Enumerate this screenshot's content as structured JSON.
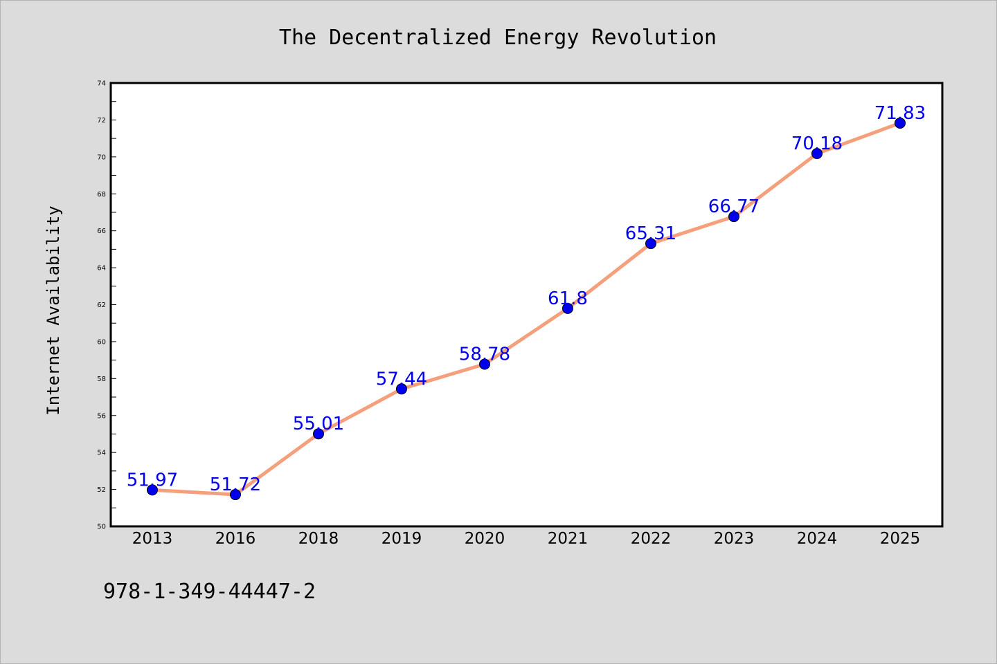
{
  "chart_data": {
    "type": "line",
    "title": "The Decentralized Energy Revolution",
    "xlabel": "",
    "ylabel": "Internet Availability",
    "categories": [
      "2013",
      "2016",
      "2018",
      "2019",
      "2020",
      "2021",
      "2022",
      "2023",
      "2024",
      "2025"
    ],
    "series": [
      {
        "values": [
          51.97,
          51.72,
          55.01,
          57.44,
          58.78,
          61.8,
          65.31,
          66.77,
          70.18,
          71.83
        ]
      }
    ],
    "data_labels": [
      "51.97",
      "51.72",
      "55.01",
      "57.44",
      "58.78",
      "61.8",
      "65.31",
      "66.77",
      "70.18",
      "71.83"
    ],
    "ylim": [
      50,
      74
    ],
    "yticks": [
      50,
      52,
      54,
      56,
      58,
      60,
      62,
      64,
      66,
      68,
      70,
      72,
      74
    ],
    "grid": false,
    "legend": "none",
    "colors": {
      "line": "#f4a07c",
      "marker": "#0000ee",
      "label": "#0000ee",
      "background": "#dcdcdc",
      "plot_background": "#ffffff"
    }
  },
  "footer": {
    "code": "978-1-349-44447-2"
  }
}
